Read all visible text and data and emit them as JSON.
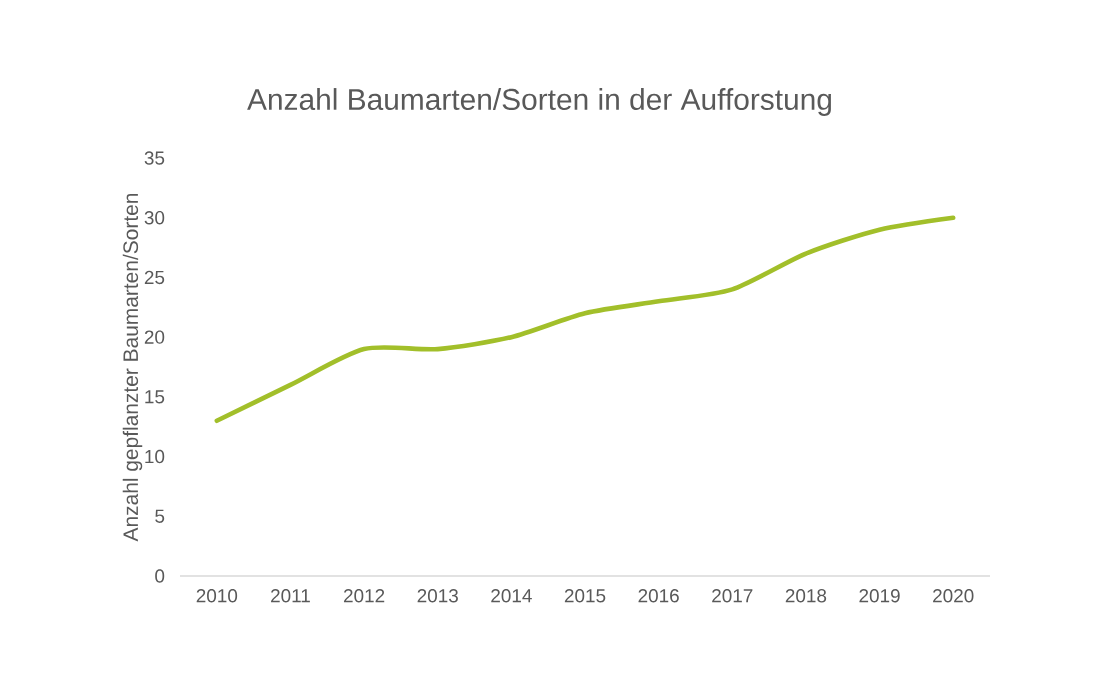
{
  "chart_data": {
    "type": "line",
    "title": "Anzahl Baumarten/Sorten in der Aufforstung",
    "ylabel": "Anzahl gepflanzter Baumarten/Sorten",
    "categories": [
      "2010",
      "2011",
      "2012",
      "2013",
      "2014",
      "2015",
      "2016",
      "2017",
      "2018",
      "2019",
      "2020"
    ],
    "series": [
      {
        "color": "#a2bf2a",
        "values": [
          13,
          16,
          19,
          19,
          20,
          22,
          23,
          24,
          27,
          29,
          30
        ]
      }
    ],
    "ylim": [
      0,
      35
    ],
    "yticks": [
      0,
      5,
      10,
      15,
      20,
      25,
      30,
      35
    ],
    "marker": "none"
  }
}
